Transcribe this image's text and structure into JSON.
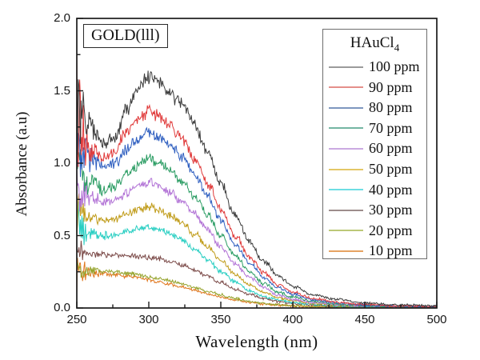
{
  "badge": {
    "text": "GOLD(lll)"
  },
  "legend": {
    "title_main": "HAuCl",
    "title_sub": "4"
  },
  "chart_data": {
    "type": "line",
    "title": "",
    "xlabel": "Wavelength (nm)",
    "ylabel": "Absorbance (a.u)",
    "xlim": [
      250,
      500
    ],
    "ylim": [
      0,
      2.0
    ],
    "x_tick_labels": [
      "250",
      "300",
      "350",
      "400",
      "450",
      "500"
    ],
    "x_tick_values": [
      250,
      300,
      350,
      400,
      450,
      500
    ],
    "y_tick_labels": [
      "0.0",
      "0.5",
      "1.0",
      "1.5",
      "2.0"
    ],
    "y_tick_values": [
      0,
      0.5,
      1.0,
      1.5,
      2.0
    ],
    "x_minor_values": [
      275,
      325,
      375,
      425,
      475
    ],
    "y_minor_values": [
      0.25,
      0.75,
      1.25,
      1.75
    ],
    "grid": false,
    "legend_position": "upper right",
    "series": [
      {
        "name": "100 ppm",
        "color": "#3c3c3c",
        "legend_color": "#9b9b9b",
        "spike": 0.35,
        "points": [
          [
            250,
            1.42
          ],
          [
            254,
            1.3
          ],
          [
            260,
            1.25
          ],
          [
            268,
            1.14
          ],
          [
            276,
            1.18
          ],
          [
            285,
            1.38
          ],
          [
            293,
            1.52
          ],
          [
            300,
            1.6
          ],
          [
            307,
            1.56
          ],
          [
            315,
            1.48
          ],
          [
            323,
            1.4
          ],
          [
            332,
            1.26
          ],
          [
            341,
            1.07
          ],
          [
            350,
            0.86
          ],
          [
            360,
            0.64
          ],
          [
            370,
            0.46
          ],
          [
            380,
            0.32
          ],
          [
            390,
            0.22
          ],
          [
            400,
            0.15
          ],
          [
            415,
            0.09
          ],
          [
            430,
            0.06
          ],
          [
            450,
            0.035
          ],
          [
            470,
            0.022
          ],
          [
            500,
            0.015
          ]
        ]
      },
      {
        "name": "90 ppm",
        "color": "#e03a3a",
        "legend_color": "#e58f8a",
        "spike": 0.4,
        "points": [
          [
            250,
            1.3
          ],
          [
            254,
            1.18
          ],
          [
            260,
            1.12
          ],
          [
            268,
            1.04
          ],
          [
            276,
            1.08
          ],
          [
            285,
            1.22
          ],
          [
            293,
            1.31
          ],
          [
            300,
            1.36
          ],
          [
            307,
            1.33
          ],
          [
            315,
            1.26
          ],
          [
            323,
            1.17
          ],
          [
            332,
            1.03
          ],
          [
            341,
            0.86
          ],
          [
            350,
            0.68
          ],
          [
            360,
            0.5
          ],
          [
            370,
            0.35
          ],
          [
            380,
            0.24
          ],
          [
            390,
            0.16
          ],
          [
            400,
            0.11
          ],
          [
            415,
            0.065
          ],
          [
            430,
            0.04
          ],
          [
            450,
            0.025
          ],
          [
            470,
            0.015
          ],
          [
            500,
            0.01
          ]
        ]
      },
      {
        "name": "80 ppm",
        "color": "#2f5fc0",
        "legend_color": "#7e96bf",
        "spike": 0.25,
        "points": [
          [
            250,
            1.18
          ],
          [
            254,
            1.08
          ],
          [
            260,
            1.03
          ],
          [
            268,
            0.97
          ],
          [
            276,
            1.0
          ],
          [
            285,
            1.1
          ],
          [
            293,
            1.17
          ],
          [
            300,
            1.21
          ],
          [
            307,
            1.18
          ],
          [
            315,
            1.12
          ],
          [
            323,
            1.04
          ],
          [
            332,
            0.92
          ],
          [
            341,
            0.77
          ],
          [
            350,
            0.61
          ],
          [
            360,
            0.44
          ],
          [
            370,
            0.31
          ],
          [
            380,
            0.21
          ],
          [
            390,
            0.14
          ],
          [
            400,
            0.095
          ],
          [
            415,
            0.055
          ],
          [
            430,
            0.035
          ],
          [
            450,
            0.02
          ],
          [
            470,
            0.012
          ],
          [
            500,
            0.008
          ]
        ]
      },
      {
        "name": "70 ppm",
        "color": "#2c9d64",
        "legend_color": "#74b5a3",
        "spike": 0.22,
        "points": [
          [
            250,
            1.02
          ],
          [
            254,
            0.92
          ],
          [
            260,
            0.88
          ],
          [
            268,
            0.82
          ],
          [
            276,
            0.84
          ],
          [
            285,
            0.93
          ],
          [
            293,
            0.99
          ],
          [
            300,
            1.03
          ],
          [
            307,
            1.0
          ],
          [
            315,
            0.95
          ],
          [
            323,
            0.88
          ],
          [
            332,
            0.77
          ],
          [
            341,
            0.64
          ],
          [
            350,
            0.5
          ],
          [
            360,
            0.36
          ],
          [
            370,
            0.25
          ],
          [
            380,
            0.17
          ],
          [
            390,
            0.11
          ],
          [
            400,
            0.075
          ],
          [
            415,
            0.045
          ],
          [
            430,
            0.028
          ],
          [
            450,
            0.016
          ],
          [
            470,
            0.01
          ],
          [
            500,
            0.007
          ]
        ]
      },
      {
        "name": "60 ppm",
        "color": "#b273d6",
        "legend_color": "#cbaae2",
        "spike": 0.18,
        "points": [
          [
            250,
            0.88
          ],
          [
            254,
            0.8
          ],
          [
            260,
            0.77
          ],
          [
            268,
            0.73
          ],
          [
            276,
            0.74
          ],
          [
            285,
            0.8
          ],
          [
            293,
            0.85
          ],
          [
            300,
            0.87
          ],
          [
            307,
            0.85
          ],
          [
            315,
            0.8
          ],
          [
            323,
            0.74
          ],
          [
            332,
            0.65
          ],
          [
            341,
            0.54
          ],
          [
            350,
            0.42
          ],
          [
            360,
            0.3
          ],
          [
            370,
            0.21
          ],
          [
            380,
            0.14
          ],
          [
            390,
            0.09
          ],
          [
            400,
            0.06
          ],
          [
            415,
            0.038
          ],
          [
            430,
            0.024
          ],
          [
            450,
            0.014
          ],
          [
            470,
            0.009
          ],
          [
            500,
            0.006
          ]
        ]
      },
      {
        "name": "50 ppm",
        "color": "#c09c1a",
        "legend_color": "#e4c766",
        "spike": 0.16,
        "points": [
          [
            250,
            0.72
          ],
          [
            254,
            0.66
          ],
          [
            260,
            0.63
          ],
          [
            268,
            0.6
          ],
          [
            276,
            0.61
          ],
          [
            285,
            0.65
          ],
          [
            293,
            0.68
          ],
          [
            300,
            0.7
          ],
          [
            307,
            0.68
          ],
          [
            315,
            0.64
          ],
          [
            323,
            0.59
          ],
          [
            332,
            0.51
          ],
          [
            341,
            0.42
          ],
          [
            350,
            0.33
          ],
          [
            360,
            0.23
          ],
          [
            370,
            0.16
          ],
          [
            380,
            0.105
          ],
          [
            390,
            0.07
          ],
          [
            400,
            0.05
          ],
          [
            415,
            0.03
          ],
          [
            430,
            0.02
          ],
          [
            450,
            0.012
          ],
          [
            470,
            0.008
          ],
          [
            500,
            0.005
          ]
        ]
      },
      {
        "name": "40 ppm",
        "color": "#28cec2",
        "legend_color": "#6edee4",
        "spike": 0.14,
        "points": [
          [
            250,
            0.58
          ],
          [
            254,
            0.54
          ],
          [
            260,
            0.52
          ],
          [
            268,
            0.5
          ],
          [
            276,
            0.5
          ],
          [
            285,
            0.53
          ],
          [
            293,
            0.55
          ],
          [
            300,
            0.56
          ],
          [
            307,
            0.545
          ],
          [
            315,
            0.51
          ],
          [
            323,
            0.47
          ],
          [
            332,
            0.4
          ],
          [
            341,
            0.33
          ],
          [
            350,
            0.25
          ],
          [
            360,
            0.18
          ],
          [
            370,
            0.12
          ],
          [
            380,
            0.08
          ],
          [
            390,
            0.055
          ],
          [
            400,
            0.038
          ],
          [
            415,
            0.024
          ],
          [
            430,
            0.015
          ],
          [
            450,
            0.009
          ],
          [
            470,
            0.006
          ],
          [
            500,
            0.004
          ]
        ]
      },
      {
        "name": "30 ppm",
        "color": "#7b4a48",
        "legend_color": "#9d8d8c",
        "spike": 0.1,
        "points": [
          [
            250,
            0.4
          ],
          [
            254,
            0.385
          ],
          [
            260,
            0.375
          ],
          [
            268,
            0.37
          ],
          [
            276,
            0.365
          ],
          [
            285,
            0.36
          ],
          [
            293,
            0.355
          ],
          [
            300,
            0.35
          ],
          [
            307,
            0.34
          ],
          [
            315,
            0.32
          ],
          [
            323,
            0.295
          ],
          [
            332,
            0.26
          ],
          [
            341,
            0.22
          ],
          [
            350,
            0.175
          ],
          [
            360,
            0.13
          ],
          [
            370,
            0.095
          ],
          [
            380,
            0.066
          ],
          [
            390,
            0.046
          ],
          [
            400,
            0.032
          ],
          [
            415,
            0.02
          ],
          [
            430,
            0.013
          ],
          [
            450,
            0.008
          ],
          [
            470,
            0.005
          ],
          [
            500,
            0.004
          ]
        ]
      },
      {
        "name": "20 ppm",
        "color": "#95a32c",
        "legend_color": "#bcc878",
        "spike": 0.09,
        "points": [
          [
            250,
            0.27
          ],
          [
            254,
            0.265
          ],
          [
            260,
            0.26
          ],
          [
            268,
            0.255
          ],
          [
            276,
            0.25
          ],
          [
            285,
            0.24
          ],
          [
            293,
            0.23
          ],
          [
            300,
            0.215
          ],
          [
            307,
            0.2
          ],
          [
            315,
            0.185
          ],
          [
            323,
            0.165
          ],
          [
            332,
            0.14
          ],
          [
            341,
            0.115
          ],
          [
            350,
            0.09
          ],
          [
            360,
            0.065
          ],
          [
            370,
            0.045
          ],
          [
            380,
            0.032
          ],
          [
            390,
            0.022
          ],
          [
            400,
            0.016
          ],
          [
            415,
            0.01
          ],
          [
            430,
            0.007
          ],
          [
            450,
            0.005
          ],
          [
            470,
            0.004
          ],
          [
            500,
            0.003
          ]
        ]
      },
      {
        "name": "10 ppm",
        "color": "#e0771e",
        "legend_color": "#e7a362",
        "spike": 0.12,
        "points": [
          [
            250,
            0.26
          ],
          [
            254,
            0.25
          ],
          [
            260,
            0.245
          ],
          [
            268,
            0.235
          ],
          [
            276,
            0.23
          ],
          [
            285,
            0.22
          ],
          [
            293,
            0.21
          ],
          [
            300,
            0.195
          ],
          [
            307,
            0.18
          ],
          [
            315,
            0.165
          ],
          [
            323,
            0.145
          ],
          [
            332,
            0.12
          ],
          [
            341,
            0.1
          ],
          [
            350,
            0.075
          ],
          [
            360,
            0.055
          ],
          [
            370,
            0.04
          ],
          [
            380,
            0.028
          ],
          [
            390,
            0.02
          ],
          [
            400,
            0.014
          ],
          [
            415,
            0.009
          ],
          [
            430,
            0.006
          ],
          [
            450,
            0.004
          ],
          [
            470,
            0.003
          ],
          [
            500,
            0.003
          ]
        ]
      }
    ]
  }
}
